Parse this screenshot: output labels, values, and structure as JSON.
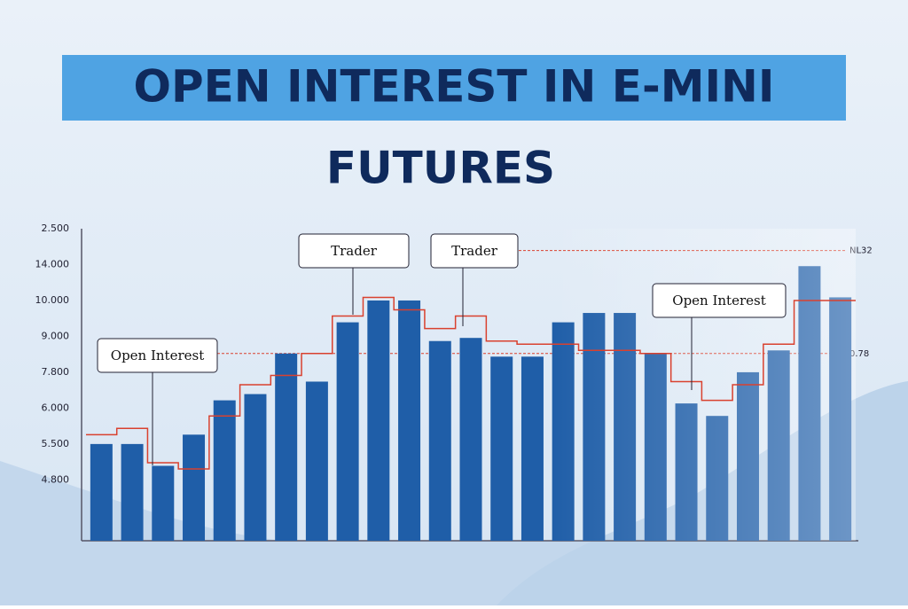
{
  "chart_data": {
    "type": "bar",
    "title_lines": [
      "OPEN INTEREST IN E-MINI",
      "FUTURES"
    ],
    "y_axis_labels": [
      "2.500",
      "14.000",
      "10.000",
      "9.000",
      "7.800",
      "6.000",
      "5.500",
      "4.800"
    ],
    "ylim": [
      0,
      100
    ],
    "color": "#1f5ea8",
    "values": [
      31,
      31,
      24,
      34,
      45,
      47,
      60,
      51,
      70,
      77,
      77,
      64,
      65,
      59,
      59,
      70,
      73,
      73,
      60,
      44,
      40,
      54,
      61,
      88,
      78
    ],
    "line": {
      "color": "#d9412f",
      "values": [
        34,
        36,
        25,
        23,
        40,
        50,
        53,
        60,
        72,
        78,
        74,
        68,
        72,
        64,
        63,
        63,
        61,
        61,
        60,
        51,
        45,
        50,
        63,
        77,
        77
      ]
    },
    "reference_lines": [
      {
        "value": 93,
        "label": "NL32"
      },
      {
        "value": 60,
        "label": "0.78"
      }
    ],
    "annotations": [
      "Open Interest",
      "Trader",
      "Trader",
      "Open Interest"
    ]
  }
}
